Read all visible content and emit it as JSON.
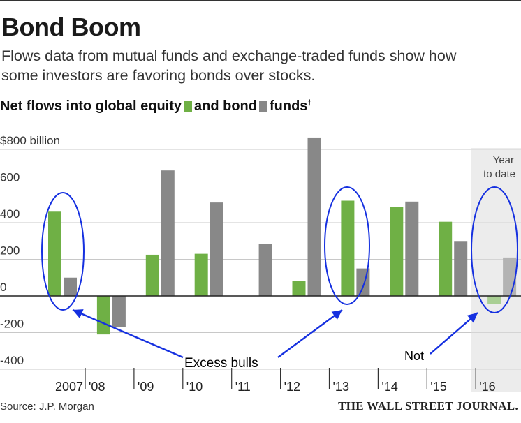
{
  "title": "Bond Boom",
  "subtitle": "Flows data from mutual funds and exchange-traded funds show how some investors are favoring bonds over stocks.",
  "legend": {
    "prefix": "Net flows into global equity",
    "middle": "and bond",
    "suffix": "funds",
    "dagger": "†"
  },
  "colors": {
    "equity": "#6fb045",
    "bond": "#888888",
    "equity_ytd": "#a9cf94",
    "bond_ytd": "#b3b3b3",
    "ytd_band": "#ececec",
    "gridline": "#c8c8c8",
    "annotation": "#1530e0"
  },
  "chart_data": {
    "type": "bar",
    "title": "Net flows into global equity and bond funds",
    "ylabel": "$ billion",
    "ylim": [
      -450,
      850
    ],
    "yticks": [
      {
        "value": 800,
        "label": "$800 billion"
      },
      {
        "value": 600,
        "label": "600"
      },
      {
        "value": 400,
        "label": "400"
      },
      {
        "value": 200,
        "label": "200"
      },
      {
        "value": 0,
        "label": "0"
      },
      {
        "value": -200,
        "label": "-200"
      },
      {
        "value": -400,
        "label": "-400"
      }
    ],
    "categories": [
      "2007",
      "'08",
      "'09",
      "'10",
      "'11",
      "'12",
      "'13",
      "'14",
      "'15",
      "'16"
    ],
    "series": [
      {
        "name": "equity",
        "values": [
          460,
          -210,
          225,
          230,
          0,
          80,
          520,
          485,
          405,
          -45
        ]
      },
      {
        "name": "bond",
        "values": [
          100,
          -170,
          685,
          510,
          285,
          865,
          150,
          515,
          300,
          210
        ]
      }
    ],
    "ytd_label_line1": "Year",
    "ytd_label_line2": "to date",
    "annotations": [
      {
        "text": "Excess bulls",
        "targets": [
          "2007",
          "'13"
        ]
      },
      {
        "text": "Not",
        "targets": [
          "'16"
        ]
      }
    ]
  },
  "source": "Source: J.P. Morgan",
  "publisher": "THE WALL STREET JOURNAL."
}
